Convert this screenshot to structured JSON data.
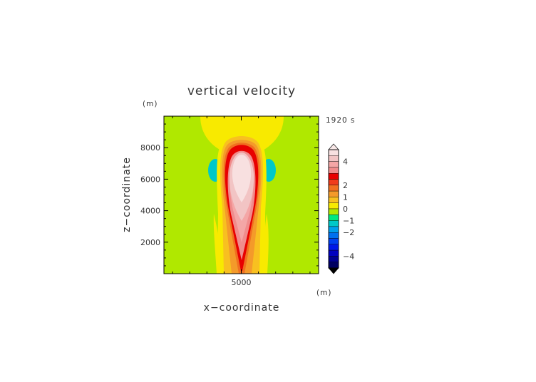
{
  "chart_data": {
    "type": "heatmap",
    "title": "vertical velocity",
    "time_label": "1920 s",
    "xlabel": "x−coordinate",
    "ylabel": "z−coordinate",
    "x_unit": "(m)",
    "y_unit": "(m)",
    "x_ticks": [
      {
        "value": 5000,
        "label": "5000"
      }
    ],
    "y_ticks": [
      {
        "value": 2000,
        "label": "2000"
      },
      {
        "value": 4000,
        "label": "4000"
      },
      {
        "value": 6000,
        "label": "6000"
      },
      {
        "value": 8000,
        "label": "8000"
      }
    ],
    "xlim": [
      500,
      9500
    ],
    "ylim": [
      0,
      10000
    ],
    "colorbar": {
      "range": [
        -5,
        5
      ],
      "step": 0.5,
      "tick_labels": [
        {
          "value": 4,
          "label": "4"
        },
        {
          "value": 2,
          "label": "2"
        },
        {
          "value": 1,
          "label": "1"
        },
        {
          "value": 0,
          "label": "0"
        },
        {
          "value": -1,
          "label": "−1"
        },
        {
          "value": -2,
          "label": "−2"
        },
        {
          "value": -4,
          "label": "−4"
        }
      ],
      "colors_high_to_low": [
        "#f8e0e0",
        "#f2c4c4",
        "#f4a6a6",
        "#f08c8c",
        "#e80000",
        "#f03c1c",
        "#f07020",
        "#f49a2a",
        "#f8c020",
        "#f8ea00",
        "#b0e800",
        "#00e880",
        "#00c8c8",
        "#00a0ec",
        "#0070f0",
        "#0040f0",
        "#0018e8",
        "#0000c0",
        "#000090",
        "#000060"
      ],
      "top_triangle_color": "#f8e8e8",
      "bottom_triangle_color": "#000000"
    },
    "field": {
      "background_value": 0.1,
      "features": [
        {
          "name": "upper yellow cap",
          "x": 5000,
          "z": 9300,
          "value": 0.5
        },
        {
          "name": "updraft core",
          "x": 5000,
          "z_range": [
            3200,
            7400
          ],
          "peak_value": 4.6
        },
        {
          "name": "left downdraft",
          "x": 4200,
          "z": 6400,
          "value": -0.9
        },
        {
          "name": "right downdraft",
          "x": 5800,
          "z": 6400,
          "value": -0.9
        }
      ]
    }
  }
}
